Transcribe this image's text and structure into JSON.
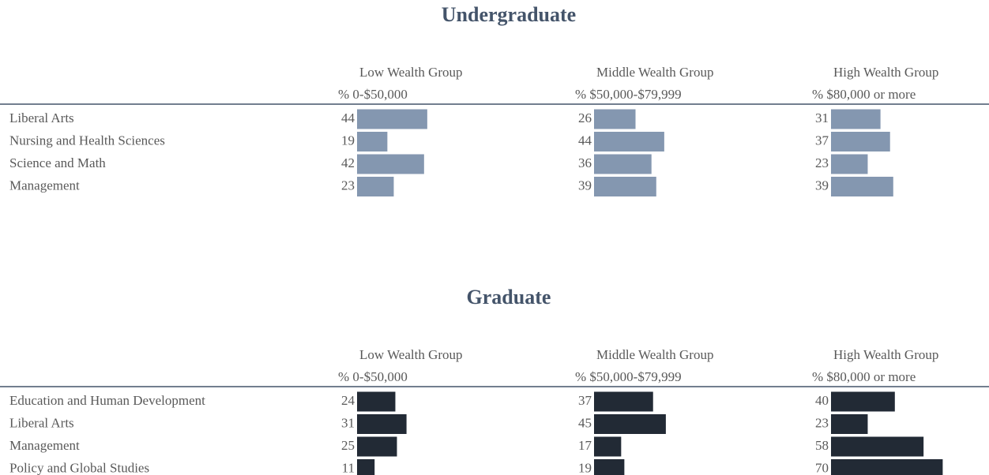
{
  "chart_data": [
    {
      "type": "bar",
      "title": "Undergraduate",
      "categories": [
        "Liberal Arts",
        "Nursing and Health Sciences",
        "Science and Math",
        "Management"
      ],
      "series": [
        {
          "name": "Low Wealth Group",
          "range": "% 0-$50,000",
          "color": "#8497b0",
          "values": [
            44,
            19,
            42,
            23
          ]
        },
        {
          "name": "Middle Wealth Group",
          "range": "% $50,000-$79,999",
          "color": "#8497b0",
          "values": [
            26,
            44,
            36,
            39
          ]
        },
        {
          "name": "High Wealth Group",
          "range": "% $80,000 or more",
          "color": "#8497b0",
          "values": [
            31,
            37,
            23,
            39
          ]
        }
      ]
    },
    {
      "type": "bar",
      "title": "Graduate",
      "categories": [
        "Education and Human Development",
        "Liberal Arts",
        "Management",
        "Policy and Global Studies"
      ],
      "series": [
        {
          "name": "Low Wealth Group",
          "range": "% 0-$50,000",
          "color": "#222a35",
          "values": [
            24,
            31,
            25,
            11
          ]
        },
        {
          "name": "Middle Wealth Group",
          "range": "% $50,000-$79,999",
          "color": "#222a35",
          "values": [
            37,
            45,
            17,
            19
          ]
        },
        {
          "name": "High Wealth Group",
          "range": "% $80,000 or more",
          "color": "#222a35",
          "values": [
            40,
            23,
            58,
            70
          ]
        }
      ]
    }
  ]
}
